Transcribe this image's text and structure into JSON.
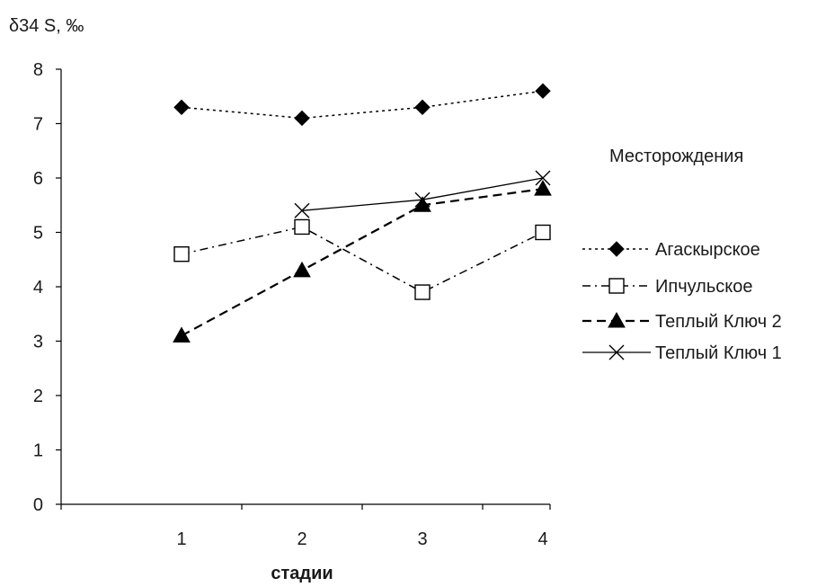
{
  "chart_data": {
    "type": "line",
    "title": "",
    "ylabel": "δ34 S, ‰",
    "xlabel": "стадии",
    "categories": [
      "1",
      "2",
      "3",
      "4"
    ],
    "ylim": [
      0,
      8
    ],
    "yticks": [
      0,
      1,
      2,
      3,
      4,
      5,
      6,
      7,
      8
    ],
    "legend_title": "Месторождения",
    "legend_position": "right",
    "series": [
      {
        "name": "Агаскырское",
        "marker": "diamond",
        "dash": "dotted",
        "color": "#000000",
        "x": [
          "1",
          "2",
          "3",
          "4"
        ],
        "values": [
          7.3,
          7.1,
          7.3,
          7.6
        ]
      },
      {
        "name": "Ипчульское",
        "marker": "square-open",
        "dash": "dash-dot",
        "color": "#000000",
        "x": [
          "1",
          "2",
          "3",
          "4"
        ],
        "values": [
          4.6,
          5.1,
          3.9,
          5.0
        ]
      },
      {
        "name": "Теплый Ключ 2",
        "marker": "triangle",
        "dash": "dashed",
        "color": "#000000",
        "x": [
          "1",
          "2",
          "3",
          "4"
        ],
        "values": [
          3.1,
          4.3,
          5.5,
          5.8
        ]
      },
      {
        "name": "Теплый Ключ 1",
        "marker": "x",
        "dash": "solid",
        "color": "#000000",
        "x": [
          "2",
          "3",
          "4"
        ],
        "values": [
          5.4,
          5.6,
          6.0
        ]
      }
    ]
  }
}
